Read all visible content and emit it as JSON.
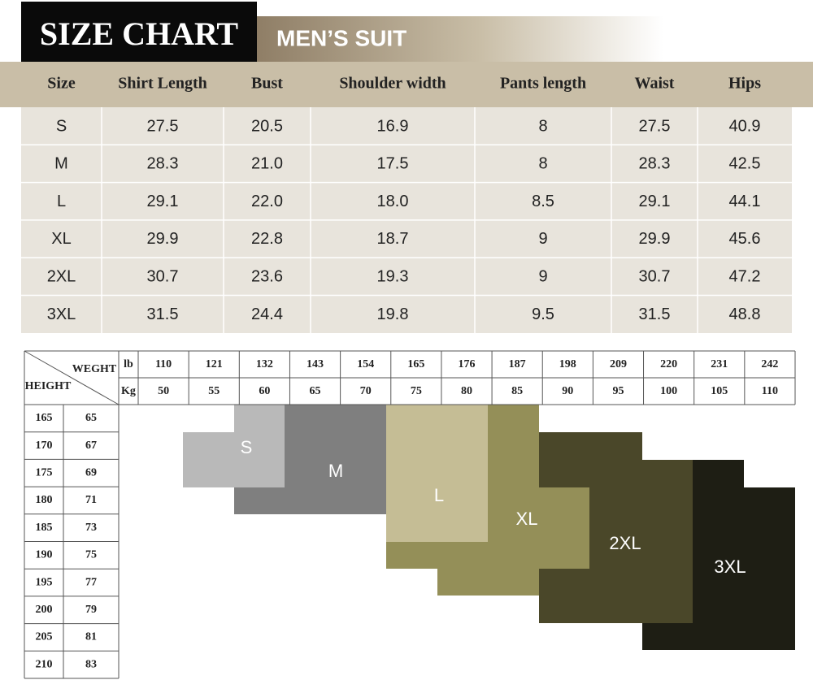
{
  "header": {
    "title": "SIZE CHART",
    "subtitle": "MEN’S SUIT"
  },
  "table": {
    "columns": [
      "Size",
      "Shirt Length",
      "Bust",
      "Shoulder width",
      "Pants length",
      "Waist",
      "Hips"
    ],
    "rows": [
      [
        "S",
        "27.5",
        "20.5",
        "16.9",
        "8",
        "27.5",
        "40.9"
      ],
      [
        "M",
        "28.3",
        "21.0",
        "17.5",
        "8",
        "28.3",
        "42.5"
      ],
      [
        "L",
        "29.1",
        "22.0",
        "18.0",
        "8.5",
        "29.1",
        "44.1"
      ],
      [
        "XL",
        "29.9",
        "22.8",
        "18.7",
        "9",
        "29.9",
        "45.6"
      ],
      [
        "2XL",
        "30.7",
        "23.6",
        "19.3",
        "9",
        "30.7",
        "47.2"
      ],
      [
        "3XL",
        "31.5",
        "24.4",
        "19.8",
        "9.5",
        "31.5",
        "48.8"
      ]
    ]
  },
  "grid": {
    "weight_label": "WEGHT",
    "height_label": "HEIGHT",
    "lb_label": "lb",
    "kg_label": "Kg",
    "lb": [
      "110",
      "121",
      "132",
      "143",
      "154",
      "165",
      "176",
      "187",
      "198",
      "209",
      "220",
      "231",
      "242"
    ],
    "kg": [
      "50",
      "55",
      "60",
      "65",
      "70",
      "75",
      "80",
      "85",
      "90",
      "95",
      "100",
      "105",
      "110"
    ],
    "heights": [
      [
        "165",
        "65"
      ],
      [
        "170",
        "67"
      ],
      [
        "175",
        "69"
      ],
      [
        "180",
        "71"
      ],
      [
        "185",
        "73"
      ],
      [
        "190",
        "75"
      ],
      [
        "195",
        "77"
      ],
      [
        "200",
        "79"
      ],
      [
        "205",
        "81"
      ],
      [
        "210",
        "83"
      ]
    ],
    "sizes": [
      "S",
      "M",
      "L",
      "XL",
      "2XL",
      "3XL"
    ]
  }
}
